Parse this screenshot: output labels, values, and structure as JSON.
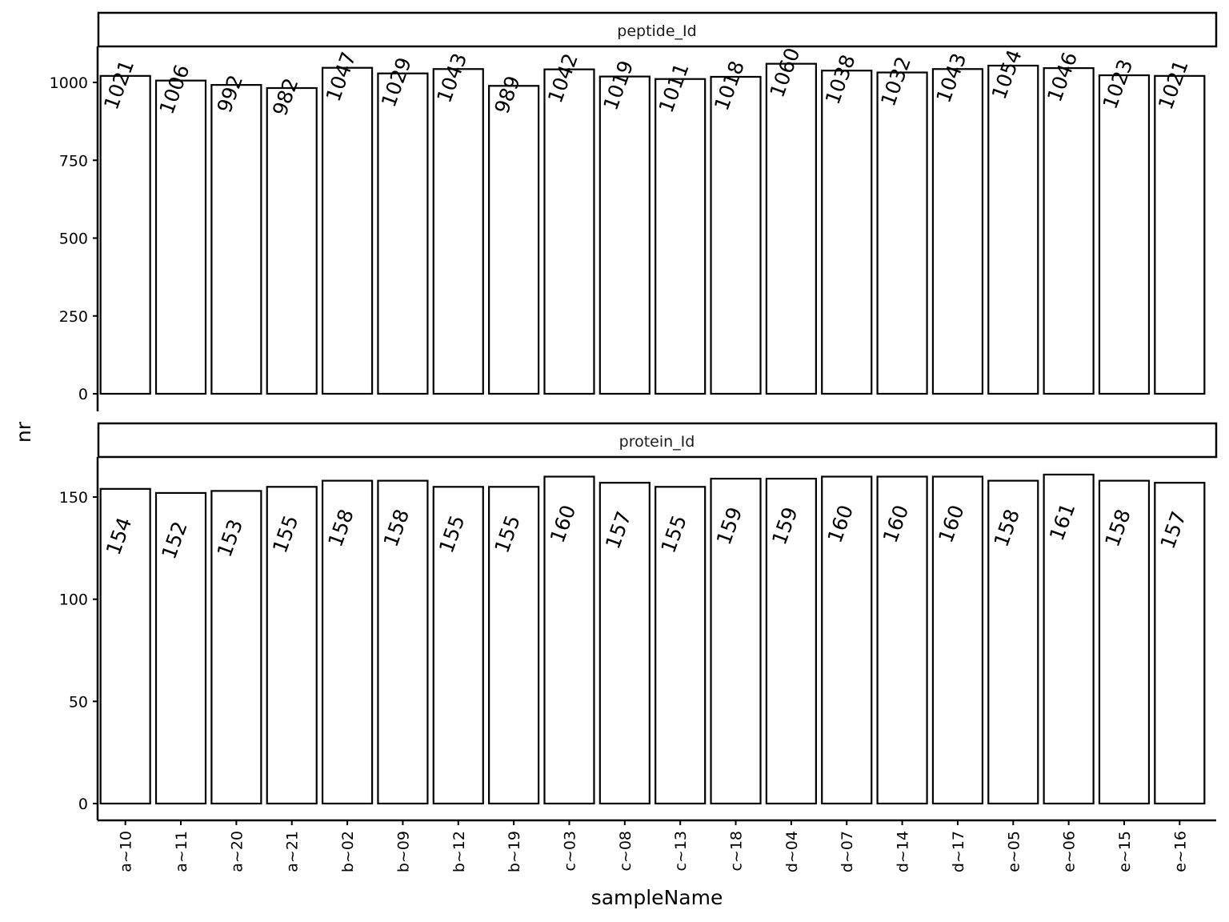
{
  "chart_data": [
    {
      "type": "bar",
      "facet": "peptide_Id",
      "categories": [
        "a~10",
        "a~11",
        "a~20",
        "a~21",
        "b~02",
        "b~09",
        "b~12",
        "b~19",
        "c~03",
        "c~08",
        "c~13",
        "c~18",
        "d~04",
        "d~07",
        "d~14",
        "d~17",
        "e~05",
        "e~06",
        "e~15",
        "e~16"
      ],
      "values": [
        1021,
        1006,
        992,
        982,
        1047,
        1029,
        1043,
        989,
        1042,
        1019,
        1011,
        1018,
        1060,
        1038,
        1032,
        1043,
        1054,
        1046,
        1023,
        1021
      ],
      "yticks": [
        0,
        250,
        500,
        750,
        1000
      ],
      "ylim": [
        0,
        1120
      ]
    },
    {
      "type": "bar",
      "facet": "protein_Id",
      "categories": [
        "a~10",
        "a~11",
        "a~20",
        "a~21",
        "b~02",
        "b~09",
        "b~12",
        "b~19",
        "c~03",
        "c~08",
        "c~13",
        "c~18",
        "d~04",
        "d~07",
        "d~14",
        "d~17",
        "e~05",
        "e~06",
        "e~15",
        "e~16"
      ],
      "values": [
        154,
        152,
        153,
        155,
        158,
        158,
        155,
        155,
        160,
        157,
        155,
        159,
        159,
        160,
        160,
        160,
        158,
        161,
        158,
        157
      ],
      "yticks": [
        0,
        50,
        100,
        150
      ],
      "ylim": [
        0,
        169
      ]
    }
  ],
  "xlabel": "sampleName",
  "ylabel": "nr",
  "colors": {
    "bar_fill": "#ffffff",
    "bar_stroke": "#000000",
    "strip_fill": "#ffffff"
  }
}
